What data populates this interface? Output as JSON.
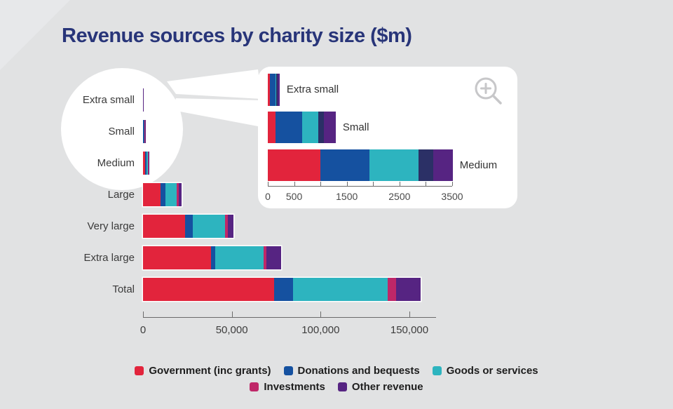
{
  "title": "Revenue sources by charity size ($m)",
  "colors": {
    "background": "#e1e2e3",
    "title": "#283579",
    "government": "#e2243c",
    "donations": "#1551a0",
    "goods": "#2db4bf",
    "investments": "#bf2768",
    "other": "#562482",
    "inset_investments": "#2b3066",
    "axis": "#6b6b6b",
    "magnifier_icon": "#c7c7c9"
  },
  "chart_data": {
    "type": "bar",
    "orientation": "horizontal",
    "stacked": true,
    "title": "Revenue sources by charity size ($m)",
    "unit": "$m",
    "categories": [
      "Extra small",
      "Small",
      "Medium",
      "Large",
      "Very large",
      "Extra large",
      "Total"
    ],
    "series": [
      {
        "name": "Government (inc grants)",
        "color": "#e2243c",
        "values": [
          35,
          145,
          1000,
          9900,
          23700,
          38200,
          74000
        ]
      },
      {
        "name": "Donations and bequests",
        "color": "#1551a0",
        "values": [
          105,
          505,
          925,
          2900,
          4300,
          2600,
          10300
        ]
      },
      {
        "name": "Goods or services",
        "color": "#2db4bf",
        "values": [
          25,
          305,
          940,
          6200,
          18000,
          27000,
          53500
        ]
      },
      {
        "name": "Investments",
        "color": "#bf2768",
        "values": [
          25,
          110,
          280,
          1200,
          1600,
          1850,
          4600
        ]
      },
      {
        "name": "Other revenue",
        "color": "#562482",
        "values": [
          35,
          225,
          365,
          1450,
          3200,
          8000,
          13800
        ]
      }
    ],
    "xlim": [
      0,
      165000
    ],
    "axis_ticks": [
      {
        "value": 0,
        "label": "0"
      },
      {
        "value": 50000,
        "label": "50,000"
      },
      {
        "value": 100000,
        "label": "100,000"
      },
      {
        "value": 150000,
        "label": "150,000"
      }
    ],
    "legend_position": "bottom",
    "grid": false
  },
  "inset": {
    "description_icon": "zoom-in-icon",
    "categories": [
      "Extra small",
      "Small",
      "Medium"
    ],
    "category_indices": [
      0,
      1,
      2
    ],
    "investments_color": "#2b3066",
    "xlim": [
      0,
      3500
    ],
    "minor_ticks": [
      0,
      500,
      1000,
      1500,
      2000,
      2500,
      3000,
      3500
    ],
    "tick_labels": [
      {
        "value": 0,
        "label": "0"
      },
      {
        "value": 500,
        "label": "500"
      },
      {
        "value": 1500,
        "label": "1500"
      },
      {
        "value": 2500,
        "label": "2500"
      },
      {
        "value": 3500,
        "label": "3500"
      }
    ]
  },
  "legend": {
    "rows": [
      [
        0,
        1,
        2
      ],
      [
        3,
        4
      ]
    ]
  }
}
